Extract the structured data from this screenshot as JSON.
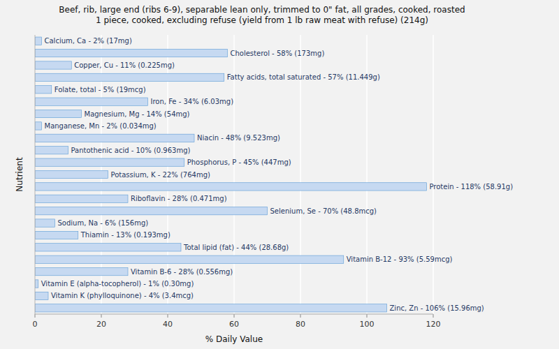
{
  "chart_data": {
    "type": "bar",
    "orientation": "horizontal",
    "title": "Beef, rib, large end (ribs 6-9), separable lean only, trimmed to 0\" fat, all grades, cooked, roasted\n1 piece, cooked, excluding refuse (yield from 1 lb raw meat with refuse) (214g)",
    "xlabel": "% Daily Value",
    "ylabel": "Nutrient",
    "categories": [
      "Calcium, Ca - 2% (17mg)",
      "Cholesterol - 58% (173mg)",
      "Copper, Cu - 11% (0.225mg)",
      "Fatty acids, total saturated - 57% (11.449g)",
      "Folate, total - 5% (19mcg)",
      "Iron, Fe - 34% (6.03mg)",
      "Magnesium, Mg - 14% (54mg)",
      "Manganese, Mn - 2% (0.034mg)",
      "Niacin - 48% (9.523mg)",
      "Pantothenic acid - 10% (0.963mg)",
      "Phosphorus, P - 45% (447mg)",
      "Potassium, K - 22% (764mg)",
      "Protein - 118% (58.91g)",
      "Riboflavin - 28% (0.471mg)",
      "Selenium, Se - 70% (48.8mcg)",
      "Sodium, Na - 6% (156mg)",
      "Thiamin - 13% (0.193mg)",
      "Total lipid (fat) - 44% (28.68g)",
      "Vitamin B-12 - 93% (5.59mcg)",
      "Vitamin B-6 - 28% (0.556mg)",
      "Vitamin E (alpha-tocopherol) - 1% (0.30mg)",
      "Vitamin K (phylloquinone) - 4% (3.4mcg)",
      "Zinc, Zn - 106% (15.96mg)"
    ],
    "values": [
      2,
      58,
      11,
      57,
      5,
      34,
      14,
      2,
      48,
      10,
      45,
      22,
      118,
      28,
      70,
      6,
      13,
      44,
      93,
      28,
      1,
      4,
      106
    ],
    "color": "#c6d9f1",
    "xlim": [
      0,
      120
    ],
    "xticks": [
      0,
      20,
      40,
      60,
      80,
      100,
      120
    ],
    "grid": true
  }
}
